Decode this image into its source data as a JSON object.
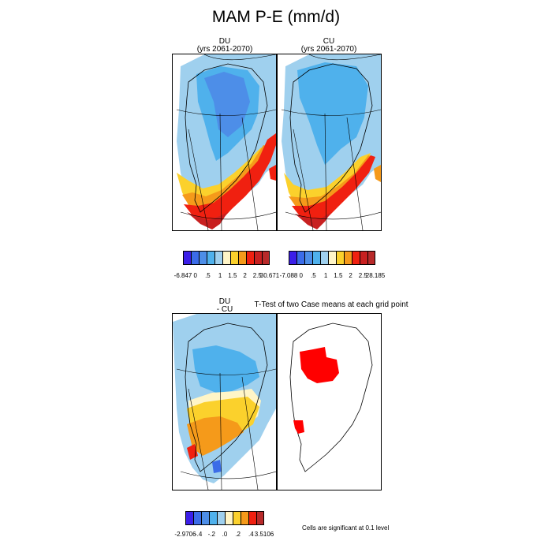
{
  "title": "MAM P-E (mm/d)",
  "panels": {
    "du": {
      "title_line1": "DU",
      "title_line2": "(yrs 2061-2070)"
    },
    "cu": {
      "title_line1": "CU",
      "title_line2": "(yrs 2061-2070)"
    },
    "diff": {
      "title_line1": "DU",
      "title_line2": "- CU"
    },
    "ttest": {
      "title": "T-Test of two Case means at each grid point"
    }
  },
  "colorbars": {
    "du": {
      "colors": [
        "#3b1ee8",
        "#3b6ce8",
        "#4d8ee8",
        "#4fb1ec",
        "#9fd0ee",
        "#fff5c7",
        "#fbd12c",
        "#f59a1a",
        "#f02010",
        "#c82020",
        "#b82a2a"
      ],
      "labels": [
        "-6.847",
        "0",
        ".5",
        "1",
        "1.5",
        "2",
        "2.5",
        "30.671"
      ]
    },
    "cu": {
      "colors": [
        "#3b1ee8",
        "#3b6ce8",
        "#4d8ee8",
        "#4fb1ec",
        "#9fd0ee",
        "#fff5c7",
        "#fbd12c",
        "#f59a1a",
        "#f02010",
        "#c82020",
        "#b82a2a"
      ],
      "labels": [
        "-7.088",
        "0",
        ".5",
        "1",
        "1.5",
        "2",
        "2.5",
        "28.185"
      ]
    },
    "diff": {
      "colors": [
        "#3b1ee8",
        "#3b6ce8",
        "#4d8ee8",
        "#4fb1ec",
        "#9fd0ee",
        "#fff5c7",
        "#fbd12c",
        "#f59a1a",
        "#f02010",
        "#b82a2a"
      ],
      "labels": [
        "-2.9706",
        "-.4",
        "-.2",
        ".0",
        ".2",
        ".4",
        "3.5106"
      ]
    }
  },
  "footnote": "Cells are significant at 0.1 level"
}
